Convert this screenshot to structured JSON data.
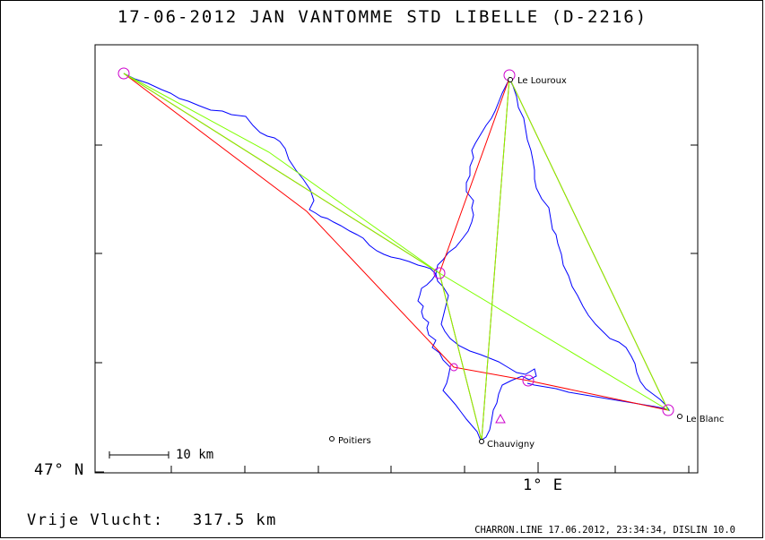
{
  "header": {
    "title": "17-06-2012    JAN VANTOMME    STD LIBELLE (D-2216)"
  },
  "axes": {
    "latitude_label": "47° N",
    "longitude_label": "1° E"
  },
  "scale": {
    "label": "10 km"
  },
  "places": {
    "le_louroux": "Le Louroux",
    "le_blanc": "Le Blanc",
    "chauvigny": "Chauvigny",
    "poitiers": "Poitiers"
  },
  "summary": {
    "label": "Vrije Vlucht:",
    "distance": "317.5 km"
  },
  "footer": {
    "info": "CHARRON.LINE 17.06.2012, 23:34:34, DISLIN 10.0"
  },
  "colors": {
    "track": "#0000ff",
    "task_line": "#ff0000",
    "optimized_line": "#7fff00",
    "turnpoint_marker": "#cc00cc",
    "frame": "#000000"
  }
}
